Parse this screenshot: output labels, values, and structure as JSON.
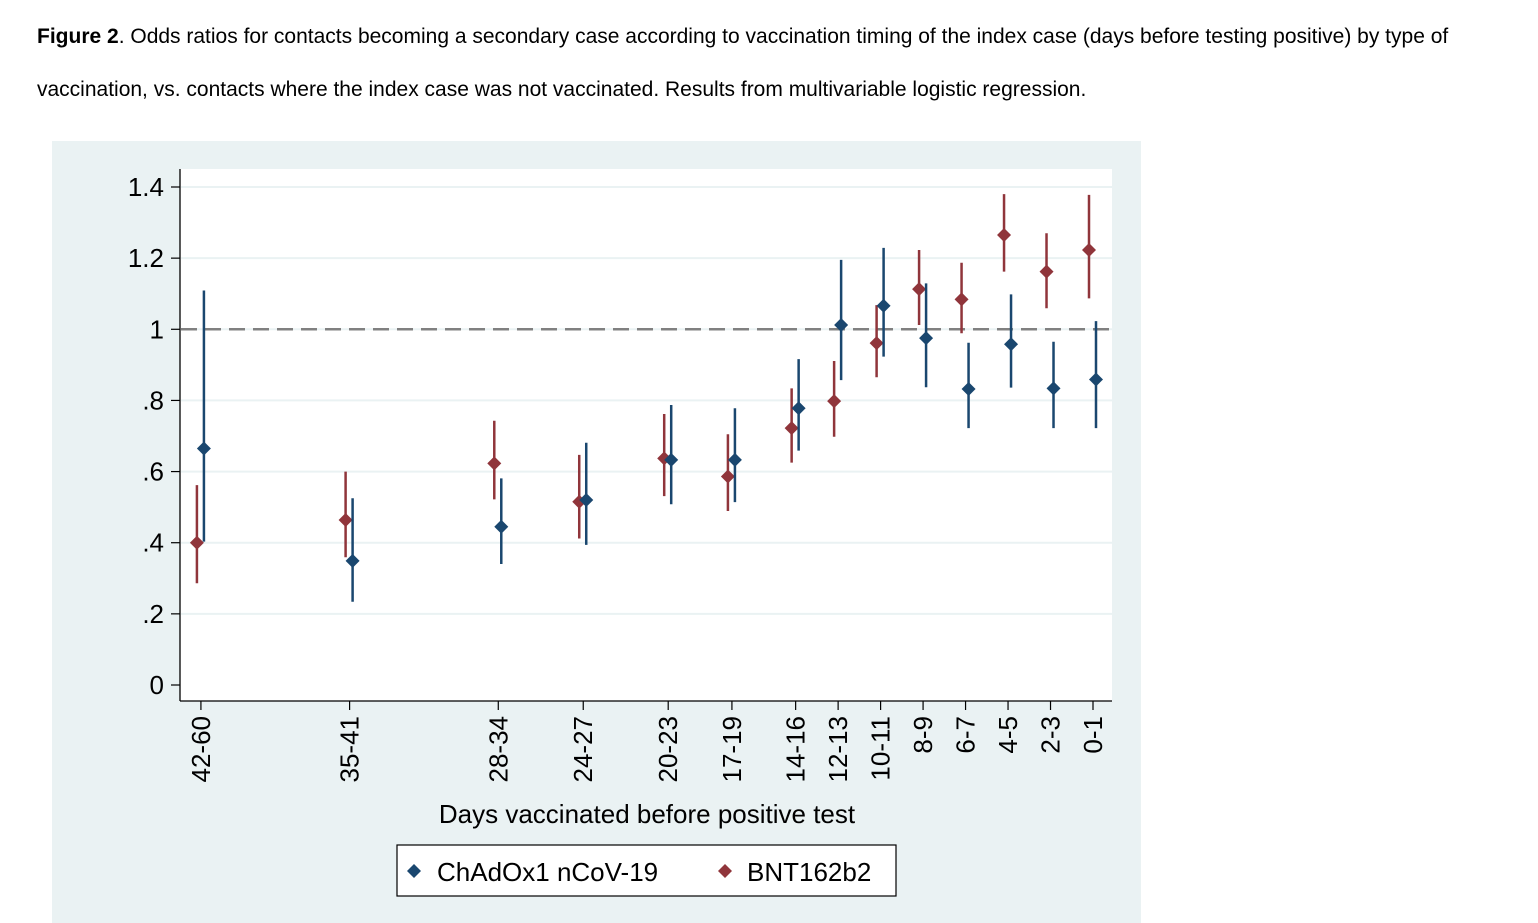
{
  "caption": {
    "label": "Figure 2",
    "text": ". Odds ratios for contacts becoming a secondary case according to vaccination timing of the index case (days before testing positive) by type of vaccination, vs. contacts where the index case was not vaccinated. Results from multivariable logistic regression."
  },
  "chart_data": {
    "type": "scatter",
    "subtype": "point-with-confidence-interval",
    "xlabel": "Days vaccinated before positive test",
    "ylabel": "",
    "ylim": [
      0,
      1.4
    ],
    "yticks": [
      0,
      0.2,
      0.4,
      0.6,
      0.8,
      1,
      1.2,
      1.4
    ],
    "ytick_labels": [
      "0",
      ".2",
      ".4",
      ".6",
      ".8",
      "1",
      "1.2",
      "1.4"
    ],
    "reference_line": 1,
    "grid": true,
    "legend_position": "bottom",
    "categories": [
      "42-60",
      "35-41",
      "28-34",
      "24-27",
      "20-23",
      "17-19",
      "14-16",
      "12-13",
      "10-11",
      "8-9",
      "6-7",
      "4-5",
      "2-3",
      "0-1"
    ],
    "x_days": [
      42,
      35,
      28,
      24,
      20,
      17,
      14,
      12,
      10,
      8,
      6,
      4,
      2,
      0
    ],
    "series": [
      {
        "name": "ChAdOx1 nCoV-19",
        "color": "#1a476f",
        "values": [
          0.665,
          0.349,
          0.445,
          0.52,
          0.633,
          0.633,
          0.778,
          1.012,
          1.066,
          0.975,
          0.832,
          0.958,
          0.834,
          0.859
        ],
        "lower": [
          0.403,
          0.234,
          0.34,
          0.394,
          0.508,
          0.514,
          0.659,
          0.857,
          0.923,
          0.837,
          0.722,
          0.836,
          0.722,
          0.722
        ],
        "upper": [
          1.109,
          0.525,
          0.581,
          0.681,
          0.787,
          0.778,
          0.916,
          1.195,
          1.229,
          1.129,
          0.962,
          1.098,
          0.965,
          1.023
        ]
      },
      {
        "name": "BNT162b2",
        "color": "#90353b",
        "values": [
          0.4,
          0.464,
          0.623,
          0.515,
          0.637,
          0.586,
          0.722,
          0.798,
          0.961,
          1.113,
          1.084,
          1.265,
          1.162,
          1.223
        ],
        "lower": [
          0.286,
          0.359,
          0.522,
          0.412,
          0.531,
          0.489,
          0.625,
          0.698,
          0.865,
          1.012,
          0.989,
          1.162,
          1.059,
          1.087
        ],
        "upper": [
          0.562,
          0.6,
          0.743,
          0.647,
          0.762,
          0.705,
          0.834,
          0.911,
          1.068,
          1.223,
          1.187,
          1.38,
          1.27,
          1.378
        ]
      }
    ]
  }
}
